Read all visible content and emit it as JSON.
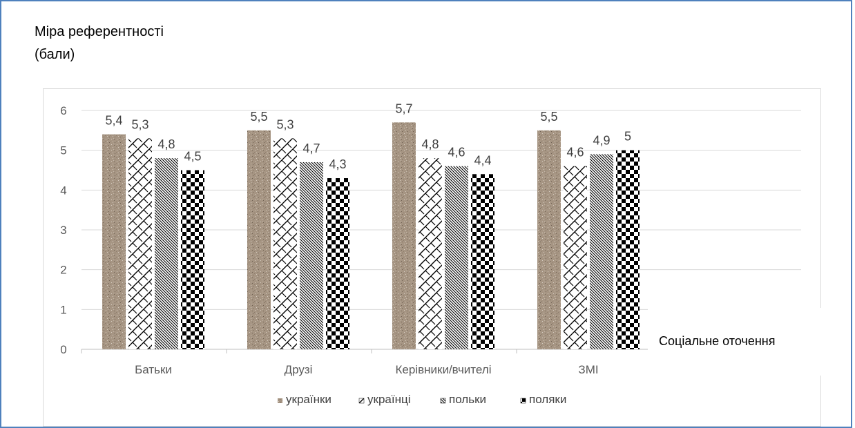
{
  "chart_data": {
    "type": "bar",
    "ylabel": "Міра референтності\n(бали)",
    "xlabel": "Соціальне оточення",
    "categories": [
      "Батьки",
      "Друзі",
      "Керівники/вчителі",
      "ЗМІ"
    ],
    "series": [
      {
        "name": "українки",
        "values": [
          5.4,
          5.5,
          5.7,
          5.5
        ],
        "data_labels": [
          "5,4",
          "5,5",
          "5,7",
          "5,5"
        ],
        "color": "#a69583"
      },
      {
        "name": "українці",
        "values": [
          5.3,
          5.3,
          4.8,
          4.6
        ],
        "data_labels": [
          "5,3",
          "5,3",
          "4,8",
          "4,6"
        ],
        "color": "#000000"
      },
      {
        "name": "польки",
        "values": [
          4.8,
          4.7,
          4.6,
          4.9
        ],
        "data_labels": [
          "4,8",
          "4,7",
          "4,6",
          "4,9"
        ],
        "color": "#000000"
      },
      {
        "name": "поляки",
        "values": [
          4.5,
          4.3,
          4.4,
          5.0
        ],
        "data_labels": [
          "4,5",
          "4,3",
          "4,4",
          "5"
        ],
        "color": "#000000"
      }
    ],
    "ylim": [
      0,
      6
    ],
    "yticks": [
      "0",
      "1",
      "2",
      "3",
      "4",
      "5",
      "6"
    ],
    "grid": true,
    "legend": "bottom"
  }
}
